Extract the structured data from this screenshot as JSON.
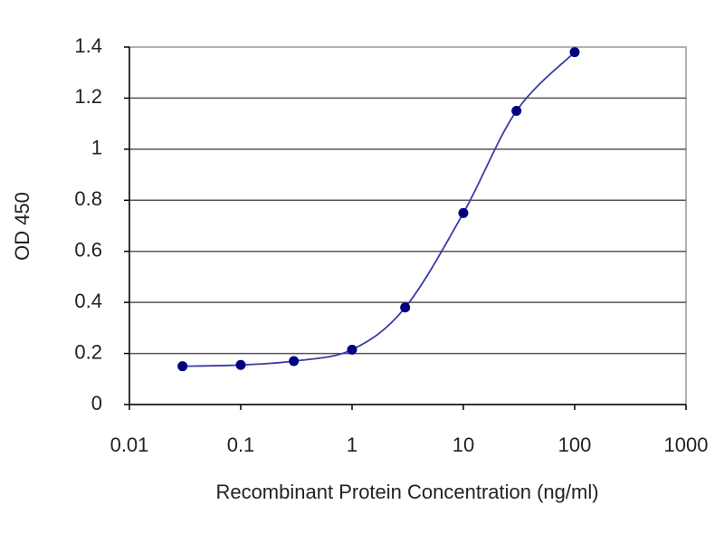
{
  "chart_data": {
    "type": "scatter",
    "x_label": "Recombinant Protein Concentration (ng/ml)",
    "y_label": "OD 450",
    "xscale": "log",
    "x": [
      0.03,
      0.1,
      0.3,
      1,
      3,
      10,
      30,
      100
    ],
    "series": [
      {
        "color": "#000080",
        "line_color": "#3a3aa8",
        "values": [
          0.15,
          0.155,
          0.17,
          0.215,
          0.38,
          0.75,
          1.15,
          1.38
        ]
      }
    ],
    "xlim": [
      0.01,
      1000
    ],
    "xticks": [
      0.01,
      0.1,
      1,
      10,
      100,
      1000
    ],
    "ylim": [
      0,
      1.4
    ],
    "yticks": [
      0,
      0.2,
      0.4,
      0.6,
      0.8,
      1,
      1.2,
      1.4
    ],
    "grid": true
  }
}
